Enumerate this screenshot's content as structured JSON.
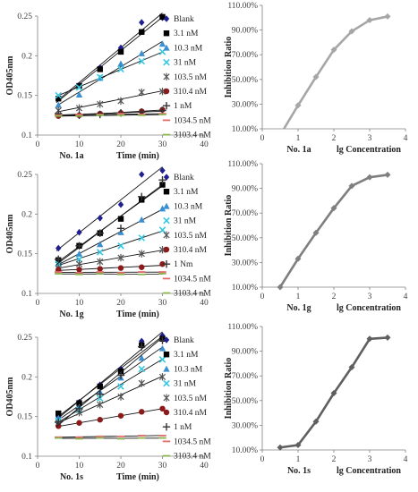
{
  "chart_data": [
    {
      "type": "scatter",
      "panel_label": "No. 1a",
      "xlabel": "Time   (min)",
      "ylabel": "OD405nm",
      "xlim": [
        0,
        40
      ],
      "ylim": [
        0.1,
        0.25
      ],
      "xticks": [
        0,
        10,
        20,
        30,
        40
      ],
      "yticks": [
        0.1,
        0.15,
        0.2,
        0.25
      ],
      "legend_position": "right",
      "grid": false,
      "x": [
        5,
        10,
        15,
        20,
        25,
        30
      ],
      "series": [
        {
          "name": "Blank",
          "marker": "diamond",
          "color": "#1f1f8f",
          "values": [
            0.147,
            0.163,
            0.185,
            0.21,
            0.242,
            0.248
          ]
        },
        {
          "name": "3.1 nM",
          "marker": "square",
          "color": "#000000",
          "values": [
            0.146,
            0.162,
            0.183,
            0.205,
            0.23,
            0.249
          ]
        },
        {
          "name": "10.3 nM",
          "marker": "triangle",
          "color": "#3b8fd0",
          "values": [
            0.138,
            0.151,
            0.172,
            0.19,
            0.203,
            0.215
          ]
        },
        {
          "name": "31 nM",
          "marker": "x",
          "color": "#35c8e0",
          "values": [
            0.15,
            0.16,
            0.173,
            0.183,
            0.193,
            0.205
          ]
        },
        {
          "name": "103.5 nM",
          "marker": "star",
          "color": "#555555",
          "values": [
            0.131,
            0.134,
            0.139,
            0.143,
            0.154,
            0.155
          ]
        },
        {
          "name": "310.4 nM",
          "marker": "circle",
          "color": "#8b1a1a",
          "values": [
            0.124,
            0.125,
            0.127,
            0.128,
            0.13,
            0.132
          ]
        },
        {
          "name": "1 nM",
          "marker": "plus",
          "color": "#333333",
          "values": [
            0.127,
            0.125,
            0.126,
            0.128,
            0.129,
            0.131
          ]
        },
        {
          "name": "1034.5 nM",
          "marker": "dash",
          "color": "#e36b6b",
          "values": [
            0.125,
            0.126,
            0.126,
            0.127,
            0.126,
            0.127
          ]
        },
        {
          "name": "3103.4 nM",
          "marker": "dash",
          "color": "#8ab34a",
          "values": [
            0.124,
            0.124,
            0.125,
            0.125,
            0.125,
            0.126
          ]
        }
      ]
    },
    {
      "type": "line",
      "panel_label": "No. 1a",
      "xlabel": "lg Concentration",
      "ylabel": "Inhibition Ratio",
      "xlim": [
        0,
        4
      ],
      "ylim": [
        10,
        110
      ],
      "xticks": [
        0,
        1,
        2,
        3,
        4
      ],
      "yticks": [
        "10.00%",
        "30.00%",
        "50.00%",
        "70.00%",
        "90.00%",
        "110.00%"
      ],
      "color": "#a6a6a6",
      "x": [
        0.5,
        1.0,
        1.5,
        2.0,
        2.5,
        3.0,
        3.5
      ],
      "values": [
        5,
        29,
        52,
        74,
        89,
        98,
        101
      ]
    },
    {
      "type": "scatter",
      "panel_label": "No. 1g",
      "xlabel": "Time   (min)",
      "ylabel": "OD405nm",
      "xlim": [
        0,
        40
      ],
      "ylim": [
        0.1,
        0.25
      ],
      "xticks": [
        0,
        10,
        20,
        30,
        40
      ],
      "yticks": [
        0.1,
        0.15,
        0.2,
        0.25
      ],
      "legend_position": "right",
      "grid": false,
      "x": [
        5,
        10,
        15,
        20,
        25,
        30
      ],
      "series": [
        {
          "name": "Blank",
          "marker": "diamond",
          "color": "#1f1f8f",
          "values": [
            0.157,
            0.177,
            0.195,
            0.212,
            0.25,
            0.255
          ]
        },
        {
          "name": "3.1 nM",
          "marker": "square",
          "color": "#000000",
          "values": [
            0.142,
            0.16,
            0.176,
            0.194,
            0.218,
            0.237
          ]
        },
        {
          "name": "10.3 nM",
          "marker": "triangle",
          "color": "#3b8fd0",
          "values": [
            0.138,
            0.15,
            0.162,
            0.177,
            0.193,
            0.207
          ]
        },
        {
          "name": "31 nM",
          "marker": "x",
          "color": "#35c8e0",
          "values": [
            0.137,
            0.143,
            0.152,
            0.16,
            0.17,
            0.18
          ]
        },
        {
          "name": "103.5 nM",
          "marker": "star",
          "color": "#555555",
          "values": [
            0.132,
            0.137,
            0.14,
            0.145,
            0.15,
            0.155
          ]
        },
        {
          "name": "310.4 nM",
          "marker": "circle",
          "color": "#8b1a1a",
          "values": [
            0.13,
            0.13,
            0.131,
            0.132,
            0.133,
            0.137
          ]
        },
        {
          "name": "1 Nm",
          "marker": "plus",
          "color": "#333333",
          "values": [
            0.143,
            0.16,
            0.176,
            0.182,
            0.222,
            0.243
          ]
        },
        {
          "name": "1034.5 nM",
          "marker": "dash",
          "color": "#e36b6b",
          "values": [
            0.127,
            0.126,
            0.127,
            0.126,
            0.127,
            0.127
          ]
        },
        {
          "name": "3103.4 nM",
          "marker": "dash",
          "color": "#8ab34a",
          "values": [
            0.125,
            0.124,
            0.125,
            0.124,
            0.124,
            0.125
          ]
        }
      ]
    },
    {
      "type": "line",
      "panel_label": "No. 1g",
      "xlabel": "lg Concentration",
      "ylabel": "Inhibition Ratio",
      "xlim": [
        0,
        4
      ],
      "ylim": [
        10,
        110
      ],
      "xticks": [
        0,
        1,
        2,
        3,
        4
      ],
      "yticks": [
        "10.00%",
        "30.00%",
        "50.00%",
        "70.00%",
        "90.00%",
        "110.00%"
      ],
      "color": "#7f7f7f",
      "x": [
        0.5,
        1.0,
        1.5,
        2.0,
        2.5,
        3.0,
        3.5
      ],
      "values": [
        10,
        33,
        54,
        74,
        92,
        99,
        101
      ]
    },
    {
      "type": "scatter",
      "panel_label": "No. 1s",
      "xlabel": "Time   (min)",
      "ylabel": "OD405nm",
      "xlim": [
        0,
        40
      ],
      "ylim": [
        0.1,
        0.25
      ],
      "xticks": [
        0,
        10,
        20,
        30,
        40
      ],
      "yticks": [
        0.1,
        0.15,
        0.2,
        0.25
      ],
      "legend_position": "right",
      "grid": false,
      "x": [
        5,
        10,
        15,
        20,
        25,
        30
      ],
      "series": [
        {
          "name": "Blank",
          "marker": "diamond",
          "color": "#1f1f8f",
          "values": [
            0.15,
            0.168,
            0.19,
            0.21,
            0.245,
            0.252
          ]
        },
        {
          "name": "3.1 nM",
          "marker": "square",
          "color": "#000000",
          "values": [
            0.154,
            0.167,
            0.188,
            0.207,
            0.24,
            0.248
          ]
        },
        {
          "name": "10.3 nM",
          "marker": "triangle",
          "color": "#3b8fd0",
          "values": [
            0.148,
            0.162,
            0.181,
            0.199,
            0.224,
            0.236
          ]
        },
        {
          "name": "31 nM",
          "marker": "x",
          "color": "#35c8e0",
          "values": [
            0.145,
            0.158,
            0.173,
            0.188,
            0.21,
            0.222
          ]
        },
        {
          "name": "103.5 nM",
          "marker": "star",
          "color": "#555555",
          "values": [
            0.142,
            0.155,
            0.165,
            0.175,
            0.192,
            0.2
          ]
        },
        {
          "name": "310.4 nM",
          "marker": "circle",
          "color": "#8b1a1a",
          "values": [
            0.138,
            0.142,
            0.146,
            0.151,
            0.156,
            0.16
          ]
        },
        {
          "name": "1 nM",
          "marker": "plus",
          "color": "#333333",
          "values": [
            0.143,
            0.16,
            0.178,
            0.202,
            0.238,
            0.246
          ]
        },
        {
          "name": "1034.5 nM",
          "marker": "dash",
          "color": "#e36b6b",
          "values": [
            0.124,
            0.124,
            0.125,
            0.125,
            0.126,
            0.126
          ]
        },
        {
          "name": "3103.4 nM",
          "marker": "dash",
          "color": "#8ab34a",
          "values": [
            0.123,
            0.122,
            0.123,
            0.122,
            0.123,
            0.123
          ]
        }
      ]
    },
    {
      "type": "line",
      "panel_label": "No. 1s",
      "xlabel": "lg Concentration",
      "ylabel": "Inhibition Ratio",
      "xlim": [
        0,
        4
      ],
      "ylim": [
        10,
        110
      ],
      "xticks": [
        0,
        1,
        2,
        3,
        4
      ],
      "yticks": [
        "10.00%",
        "30.00%",
        "50.00%",
        "70.00%",
        "90.00%",
        "110.00%"
      ],
      "color": "#5f5f5f",
      "x": [
        0.5,
        1.0,
        1.5,
        2.0,
        2.5,
        3.0,
        3.5
      ],
      "values": [
        12,
        14,
        33,
        56,
        77,
        100,
        101
      ]
    }
  ]
}
